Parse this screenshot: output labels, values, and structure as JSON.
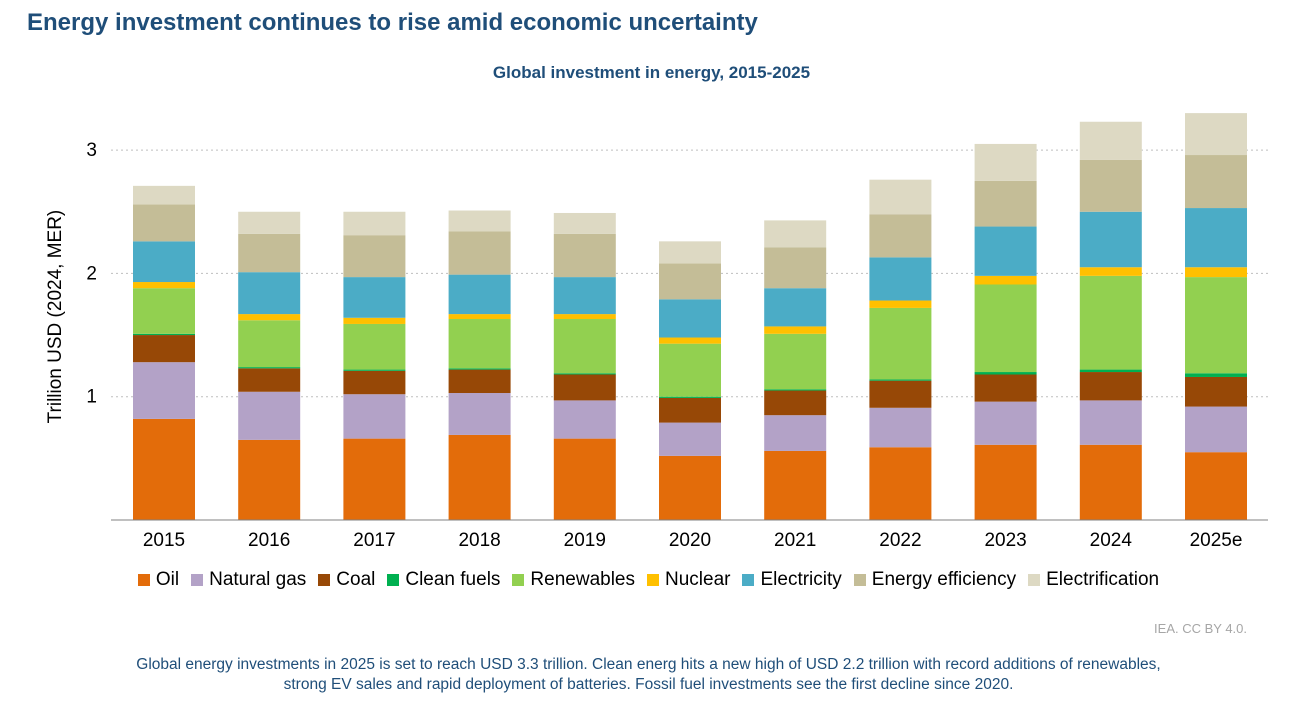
{
  "header": {
    "title": "Energy investment continues to rise amid economic uncertainty"
  },
  "credit": "IEA. CC BY 4.0.",
  "footnote": {
    "line1": "Global energy investments in 2025 is set to reach USD 3.3 trillion. Clean energ hits a new high of USD 2.2 trillion with record additions of renewables,",
    "line2": "strong EV sales and rapid deployment of batteries. Fossil fuel investments see the first decline since 2020."
  },
  "chart_data": {
    "type": "bar",
    "stacked": true,
    "title": "Global investment in energy, 2015-2025",
    "ylabel": "Trillion USD (2024, MER)",
    "xlabel": "",
    "ylim": [
      0,
      3.3
    ],
    "yticks": [
      1,
      2,
      3
    ],
    "grid": "horizontal dotted",
    "legend_position": "bottom",
    "categories": [
      "2015",
      "2016",
      "2017",
      "2018",
      "2019",
      "2020",
      "2021",
      "2022",
      "2023",
      "2024",
      "2025e"
    ],
    "series": [
      {
        "name": "Oil",
        "color": "#e36c0a",
        "values": [
          0.82,
          0.65,
          0.66,
          0.69,
          0.66,
          0.52,
          0.56,
          0.59,
          0.61,
          0.61,
          0.55
        ]
      },
      {
        "name": "Natural gas",
        "color": "#b3a2c7",
        "values": [
          0.46,
          0.39,
          0.36,
          0.34,
          0.31,
          0.27,
          0.29,
          0.32,
          0.35,
          0.36,
          0.37
        ]
      },
      {
        "name": "Coal",
        "color": "#974806",
        "values": [
          0.22,
          0.19,
          0.19,
          0.19,
          0.21,
          0.2,
          0.2,
          0.22,
          0.22,
          0.23,
          0.24
        ]
      },
      {
        "name": "Clean fuels",
        "color": "#00b050",
        "values": [
          0.01,
          0.01,
          0.01,
          0.01,
          0.01,
          0.01,
          0.01,
          0.01,
          0.02,
          0.02,
          0.03
        ]
      },
      {
        "name": "Renewables",
        "color": "#92d050",
        "values": [
          0.37,
          0.38,
          0.37,
          0.4,
          0.44,
          0.43,
          0.45,
          0.58,
          0.71,
          0.76,
          0.78
        ]
      },
      {
        "name": "Nuclear",
        "color": "#ffc000",
        "values": [
          0.05,
          0.05,
          0.05,
          0.04,
          0.04,
          0.05,
          0.06,
          0.06,
          0.07,
          0.07,
          0.08
        ]
      },
      {
        "name": "Electricity",
        "color": "#4bacc6",
        "values": [
          0.33,
          0.34,
          0.33,
          0.32,
          0.3,
          0.31,
          0.31,
          0.35,
          0.4,
          0.45,
          0.48
        ]
      },
      {
        "name": "Energy efficiency",
        "color": "#c4bd97",
        "values": [
          0.3,
          0.31,
          0.34,
          0.35,
          0.35,
          0.29,
          0.33,
          0.35,
          0.37,
          0.42,
          0.43
        ]
      },
      {
        "name": "Electrification",
        "color": "#ddd9c3",
        "values": [
          0.15,
          0.18,
          0.19,
          0.17,
          0.17,
          0.18,
          0.22,
          0.28,
          0.3,
          0.31,
          0.34
        ]
      }
    ]
  }
}
